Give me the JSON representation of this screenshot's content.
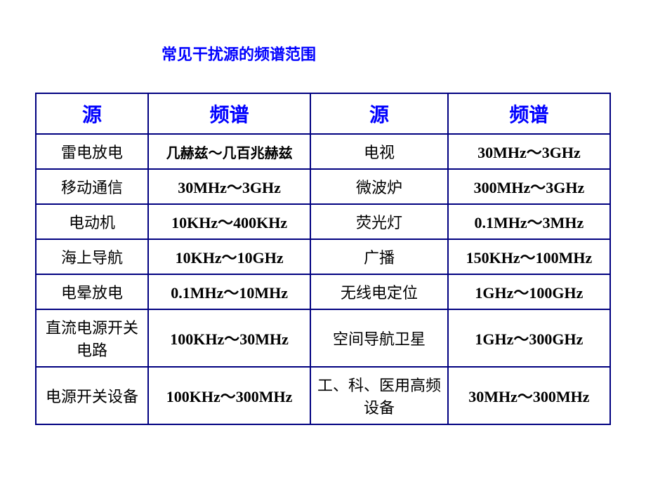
{
  "title": "常见干扰源的频谱范围",
  "columns": [
    "源",
    "频谱",
    "源",
    "频谱"
  ],
  "column_widths_pct": [
    18,
    26,
    22,
    26
  ],
  "header_fontsize": 28,
  "body_fontsize": 22,
  "colors": {
    "title": "#0000ff",
    "header_text": "#0000ff",
    "border": "#000080",
    "body_text": "#000000",
    "background": "#ffffff"
  },
  "rows": [
    {
      "src1": "雷电放电",
      "spec1": "几赫兹～几百兆赫兹",
      "spec1_is_cn": true,
      "src2": "电视",
      "spec2": "30MHz～3GHz"
    },
    {
      "src1": "移动通信",
      "spec1": "30MHz～3GHz",
      "spec1_is_cn": false,
      "src2": "微波炉",
      "spec2": "300MHz～3GHz"
    },
    {
      "src1": "电动机",
      "spec1": "10KHz～400KHz",
      "spec1_is_cn": false,
      "src2": "荧光灯",
      "spec2": "0.1MHz～3MHz"
    },
    {
      "src1": "海上导航",
      "spec1": "10KHz～10GHz",
      "spec1_is_cn": false,
      "src2": "广播",
      "spec2": "150KHz～100MHz"
    },
    {
      "src1": "电晕放电",
      "spec1": "0.1MHz～10MHz",
      "spec1_is_cn": false,
      "src2": "无线电定位",
      "spec2": "1GHz～100GHz"
    },
    {
      "src1": "直流电源开关电路",
      "spec1": "100KHz～30MHz",
      "spec1_is_cn": false,
      "src2": "空间导航卫星",
      "spec2": "1GHz～300GHz"
    },
    {
      "src1": "电源开关设备",
      "spec1": "100KHz～300MHz",
      "spec1_is_cn": false,
      "src2": "工、科、医用高频设备",
      "spec2": "30MHz～300MHz"
    }
  ]
}
